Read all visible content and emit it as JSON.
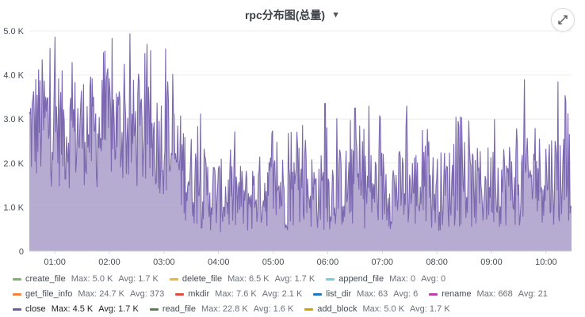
{
  "panel": {
    "title": "rpc分布图(总量)",
    "max_label": "Max:",
    "avg_label": "Avg:"
  },
  "chart_data": {
    "type": "area",
    "title": "rpc分布图(总量)",
    "xlabel": "",
    "ylabel": "",
    "ylim": [
      0,
      5000
    ],
    "y_ticks": [
      "0",
      "1.0 K",
      "2.0 K",
      "3.0 K",
      "4.0 K",
      "5.0 K"
    ],
    "x_range": [
      "00:32",
      "10:28"
    ],
    "x_ticks": [
      "01:00",
      "02:00",
      "03:00",
      "04:00",
      "05:00",
      "06:00",
      "07:00",
      "08:00",
      "09:00",
      "10:00"
    ],
    "grid": true,
    "legend_placement": "bottom",
    "shown_series": "close",
    "series": [
      {
        "name": "close",
        "color": "#7b68b0",
        "x": [
          "00:32",
          "00:45",
          "01:00",
          "01:15",
          "01:30",
          "01:45",
          "02:00",
          "02:15",
          "02:30",
          "02:45",
          "03:00",
          "03:15",
          "03:30",
          "03:45",
          "04:00",
          "04:15",
          "04:30",
          "04:45",
          "05:00",
          "05:15",
          "05:30",
          "05:45",
          "06:00",
          "06:15",
          "06:30",
          "06:45",
          "07:00",
          "07:15",
          "07:30",
          "07:45",
          "08:00",
          "08:15",
          "08:30",
          "08:45",
          "09:00",
          "09:15",
          "09:30",
          "09:45",
          "10:00",
          "10:15",
          "10:28"
        ],
        "values": [
          2750,
          2950,
          2850,
          2700,
          2800,
          2650,
          2900,
          2750,
          2650,
          2550,
          2500,
          2050,
          1650,
          1400,
          1250,
          1250,
          1150,
          1350,
          1450,
          1350,
          1450,
          1350,
          1350,
          1450,
          1450,
          1400,
          1450,
          1400,
          1450,
          1400,
          1350,
          1450,
          1450,
          1400,
          1500,
          1550,
          1550,
          1600,
          1750,
          1650,
          1850
        ],
        "spread": [
          1300,
          1500,
          1400,
          1300,
          1300,
          1300,
          1300,
          1250,
          1300,
          1200,
          1250,
          1250,
          1050,
          950,
          850,
          850,
          800,
          850,
          900,
          900,
          900,
          900,
          900,
          950,
          950,
          900,
          950,
          900,
          950,
          950,
          900,
          950,
          900,
          950,
          950,
          1000,
          1000,
          1000,
          1100,
          1100,
          1150
        ],
        "peaks": [
          [
            0.24,
            4520
          ],
          [
            0.18,
            4450
          ],
          [
            0.07,
            4480
          ],
          [
            0.13,
            4300
          ],
          [
            0.28,
            4200
          ],
          [
            0.35,
            4100
          ],
          [
            9.6,
            3900
          ],
          [
            10.22,
            3850
          ],
          [
            10.4,
            3130
          ],
          [
            5.95,
            3350
          ],
          [
            6.5,
            3250
          ],
          [
            6.75,
            3300
          ],
          [
            7.45,
            3300
          ],
          [
            8.35,
            3050
          ],
          [
            9.05,
            3000
          ]
        ]
      }
    ]
  },
  "legend": [
    [
      {
        "name": "create_file",
        "color": "#7eb26d",
        "max": "5.0 K",
        "avg": "1.7 K",
        "active": false
      },
      {
        "name": "delete_file",
        "color": "#eab839",
        "max": "6.5 K",
        "avg": "1.7 K",
        "active": false
      },
      {
        "name": "append_file",
        "color": "#6ed0e0",
        "max": "0",
        "avg": "0",
        "active": false
      }
    ],
    [
      {
        "name": "get_file_info",
        "color": "#ef843c",
        "max": "24.7 K",
        "avg": "373",
        "active": false
      },
      {
        "name": "mkdir",
        "color": "#e24d42",
        "max": "7.6 K",
        "avg": "2.1 K",
        "active": false
      },
      {
        "name": "list_dir",
        "color": "#1f78c1",
        "max": "63",
        "avg": "6",
        "active": false
      },
      {
        "name": "rename",
        "color": "#ba43a9",
        "max": "668",
        "avg": "21",
        "active": false
      }
    ],
    [
      {
        "name": "close",
        "color": "#705da0",
        "max": "4.5 K",
        "avg": "1.7 K",
        "active": true
      },
      {
        "name": "read_file",
        "color": "#508642",
        "max": "22.8 K",
        "avg": "1.6 K",
        "active": false
      },
      {
        "name": "add_block",
        "color": "#cca300",
        "max": "5.0 K",
        "avg": "1.7 K",
        "active": false
      }
    ]
  ]
}
